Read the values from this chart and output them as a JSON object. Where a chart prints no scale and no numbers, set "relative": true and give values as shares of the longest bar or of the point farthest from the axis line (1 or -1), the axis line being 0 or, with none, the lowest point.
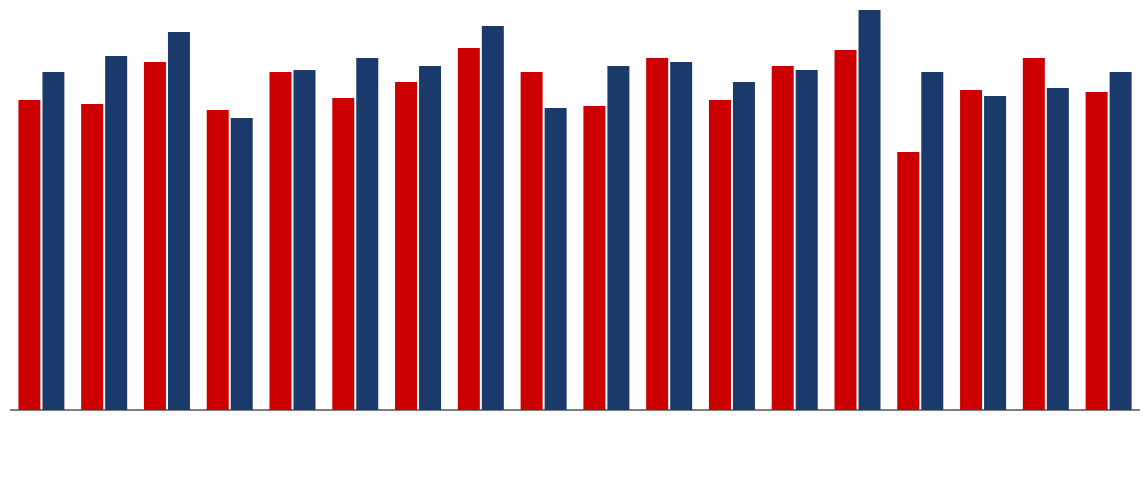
{
  "chart_data": {
    "type": "bar",
    "relative": true,
    "categories": [
      null,
      null,
      null,
      null,
      null,
      null,
      null,
      null,
      null,
      null,
      null,
      null,
      null,
      null,
      null,
      null,
      null,
      null
    ],
    "series": [
      {
        "color": "#cc0000",
        "values": [
          0.775,
          0.765,
          0.87,
          0.75,
          0.845,
          0.78,
          0.82,
          0.905,
          0.845,
          0.76,
          0.88,
          0.775,
          0.86,
          0.9,
          0.645,
          0.8,
          0.88,
          0.795
        ]
      },
      {
        "color": "#1a3a6b",
        "values": [
          0.845,
          0.885,
          0.945,
          0.73,
          0.85,
          0.88,
          0.86,
          0.96,
          0.755,
          0.86,
          0.87,
          0.82,
          0.85,
          1,
          0.845,
          0.785,
          0.805,
          0.845
        ]
      }
    ]
  }
}
